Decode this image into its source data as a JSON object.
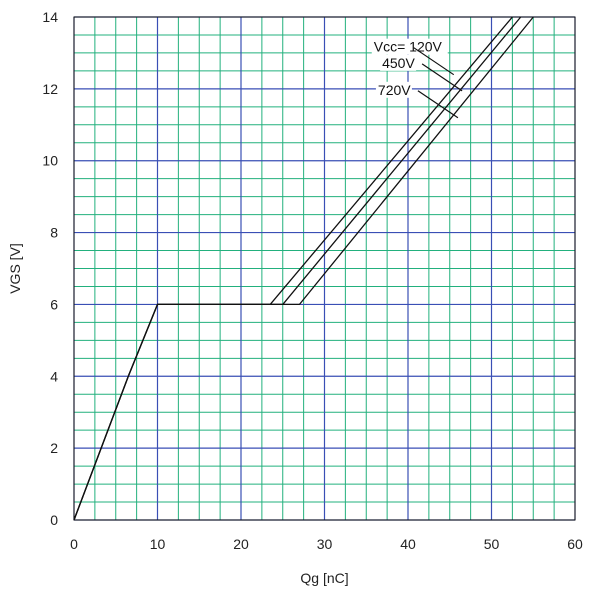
{
  "chart_data": {
    "type": "line",
    "xlabel": "Qg [nC]",
    "ylabel": "VGS [V]",
    "xlim": [
      0,
      60
    ],
    "ylim": [
      0,
      14
    ],
    "x_ticks": [
      0,
      10,
      20,
      30,
      40,
      50,
      60
    ],
    "y_ticks": [
      0,
      2,
      4,
      6,
      8,
      10,
      12,
      14
    ],
    "grid": true,
    "series": [
      {
        "name": "Vcc= 120V",
        "points": [
          [
            0,
            0
          ],
          [
            6.5,
            4
          ],
          [
            10,
            6
          ],
          [
            23.5,
            6
          ],
          [
            52.5,
            14
          ]
        ]
      },
      {
        "name": "450V",
        "points": [
          [
            0,
            0
          ],
          [
            6.5,
            4
          ],
          [
            10,
            6
          ],
          [
            25,
            6
          ],
          [
            53.5,
            14
          ]
        ]
      },
      {
        "name": "720V",
        "points": [
          [
            0,
            0
          ],
          [
            6.5,
            4
          ],
          [
            10,
            6
          ],
          [
            27,
            6
          ],
          [
            55,
            14
          ]
        ]
      }
    ],
    "annotations": [
      {
        "text": "Vcc= 120V",
        "series": 0,
        "at": [
          45,
          12.45
        ]
      },
      {
        "text": "450V",
        "series": 1,
        "at": [
          46,
          12.0
        ]
      },
      {
        "text": "720V",
        "series": 2,
        "at": [
          45.5,
          11.25
        ]
      }
    ],
    "colors": {
      "major_grid": "#3a4fb5",
      "minor_grid": "#22b07d",
      "line": "#111111",
      "background": "#ffffff"
    }
  }
}
